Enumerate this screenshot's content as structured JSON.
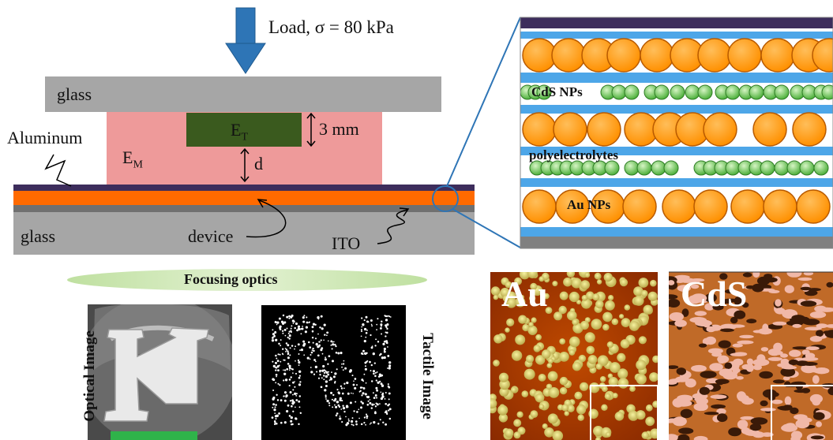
{
  "load_label": "Load, σ = 80 kPa",
  "layers": {
    "top_glass": "glass",
    "bottom_glass": "glass",
    "aluminum": "Aluminum",
    "matrix": "E",
    "matrix_sub": "M",
    "target": "E",
    "target_sub": "T",
    "thickness": "3 mm",
    "gap": "d",
    "device": "device",
    "ito": "ITO"
  },
  "zoom_labels": {
    "cds": "CdS NPs",
    "poly": "polyelectrolytes",
    "au": "Au NPs"
  },
  "optics_label": "Focusing optics",
  "optical_image_label": "Optical Image",
  "tactile_image_label": "Tactile Image",
  "afm_labels": {
    "au": "Au",
    "cds": "CdS"
  },
  "colors": {
    "glass": "#a6a6a6",
    "matrix": "#ee9a9a",
    "target": "#3a5a1e",
    "aluminum": "#3d2d5c",
    "device": "#ff6a00",
    "ito": "#707070",
    "polyelectrolyte": "#4da6e8",
    "au_np": "#ff9a1a",
    "cds_np": "#7ccf5a",
    "arrow": "#2e75b6",
    "optics": "#c7dfa6"
  }
}
